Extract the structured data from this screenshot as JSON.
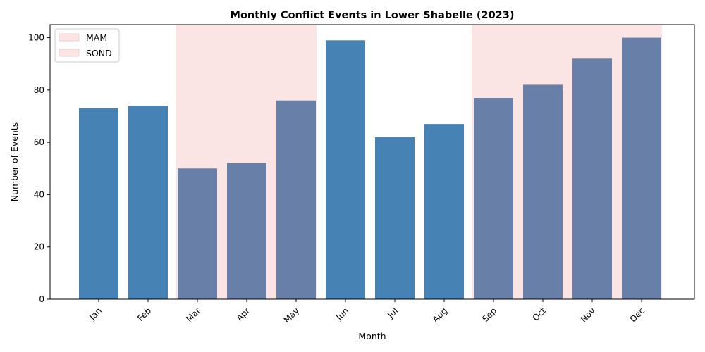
{
  "chart_data": {
    "type": "bar",
    "title": "Monthly Conflict Events in Lower Shabelle (2023)",
    "xlabel": "Month",
    "ylabel": "Number of Events",
    "categories": [
      "Jan",
      "Feb",
      "Mar",
      "Apr",
      "May",
      "Jun",
      "Jul",
      "Aug",
      "Sep",
      "Oct",
      "Nov",
      "Dec"
    ],
    "values": [
      73,
      74,
      50,
      52,
      76,
      99,
      62,
      67,
      77,
      82,
      92,
      100
    ],
    "ylim": [
      0,
      105
    ],
    "yticks": [
      0,
      20,
      40,
      60,
      80,
      100
    ],
    "grid": false,
    "legend_position": "top-left",
    "seasons": [
      {
        "name": "MAM",
        "start": "Mar",
        "end": "May"
      },
      {
        "name": "SOND",
        "start": "Sep",
        "end": "Dec"
      }
    ],
    "colors": {
      "bar_default": "#4682b4",
      "bar_in_season": "#6880a8",
      "season_shade": "#fbe4e4",
      "season_edge": "#f6cccc"
    }
  }
}
